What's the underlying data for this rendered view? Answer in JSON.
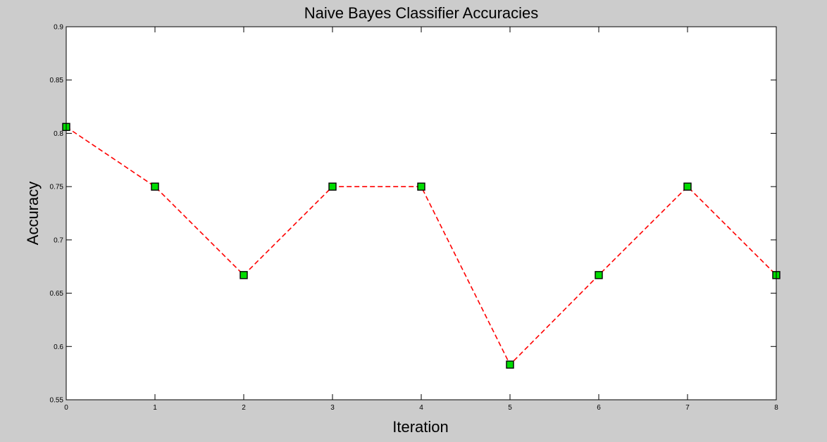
{
  "chart_data": {
    "type": "line",
    "title": "Naive Bayes Classifier Accuracies",
    "xlabel": "Iteration",
    "ylabel": "Accuracy",
    "x": [
      0,
      1,
      2,
      3,
      4,
      5,
      6,
      7,
      8
    ],
    "series": [
      {
        "values": [
          0.806,
          0.75,
          0.667,
          0.75,
          0.75,
          0.583,
          0.667,
          0.75,
          0.667
        ],
        "line_color": "#ff0000",
        "line_style": "dashed",
        "marker": "square",
        "marker_face_color": "#00dd00",
        "marker_edge_color": "#000000"
      }
    ],
    "xlim": [
      0,
      8
    ],
    "ylim": [
      0.55,
      0.9
    ],
    "xticks": [
      0,
      1,
      2,
      3,
      4,
      5,
      6,
      7,
      8
    ],
    "yticks": [
      0.55,
      0.6,
      0.65,
      0.7,
      0.75,
      0.8,
      0.85,
      0.9
    ],
    "ytick_labels": [
      "0.55",
      "0.6",
      "0.65",
      "0.7",
      "0.75",
      "0.8",
      "0.85",
      "0.9"
    ],
    "grid": false,
    "background_color": "#cccccc",
    "plot_background_color": "#ffffff"
  }
}
